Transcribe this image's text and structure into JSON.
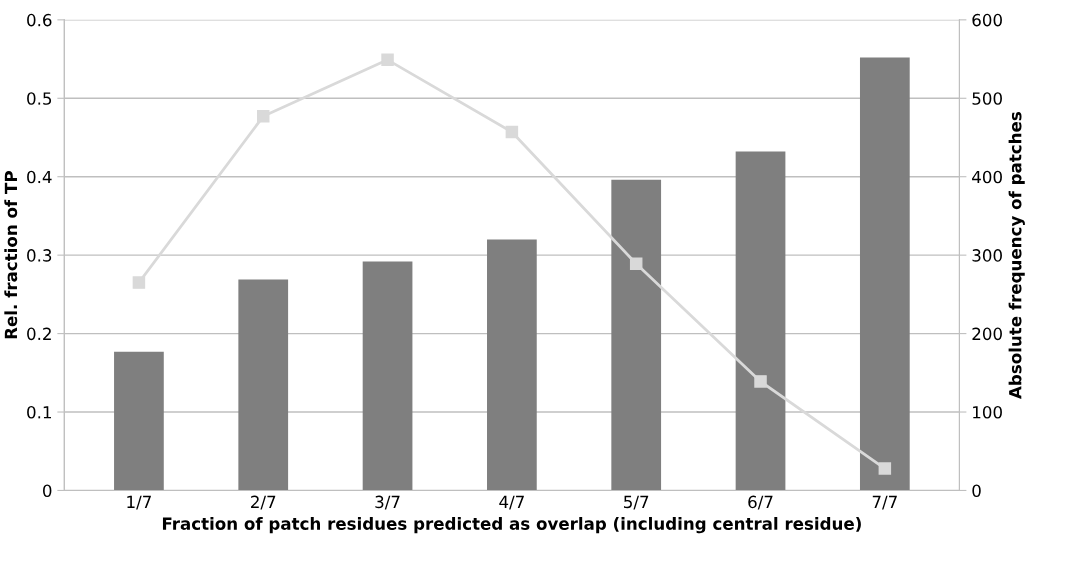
{
  "chart_data": {
    "type": "bar",
    "xlabel": "Fraction of patch residues predicted as overlap (including central residue)",
    "ylabel": "Rel. fraction of TP",
    "y2label": "Absolute frequency of patches",
    "categories": [
      "1/7",
      "2/7",
      "3/7",
      "4/7",
      "5/7",
      "6/7",
      "7/7"
    ],
    "series": [
      {
        "color": "#7f7f7f",
        "values": [
          0.177,
          0.269,
          0.292,
          0.32,
          0.396,
          0.432,
          0.552
        ]
      },
      {
        "type": "line",
        "axis": "y2",
        "color": "#d9d9d9",
        "marker": "square",
        "values": [
          265,
          477,
          549,
          457,
          289,
          139,
          28
        ]
      }
    ],
    "ylim": [
      0,
      0.6
    ],
    "yticks": [
      {
        "value": 0,
        "label": "0"
      },
      0.1,
      0.2,
      0.3,
      0.4,
      0.5,
      0.6
    ],
    "y2lim": [
      0,
      600
    ],
    "y2ticks": [
      0,
      100,
      200,
      300,
      400,
      500,
      600
    ],
    "grid": "y",
    "legend": false
  }
}
